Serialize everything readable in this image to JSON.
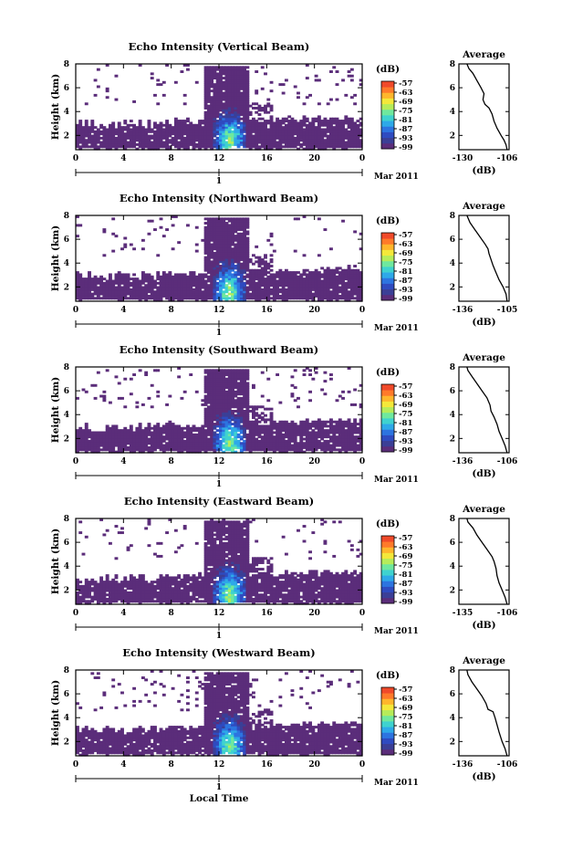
{
  "chart_data": {
    "type": "heatmap",
    "x_axis_label": "Local Time",
    "x_ticks": [
      "0",
      "4",
      "8",
      "12",
      "16",
      "20",
      "0"
    ],
    "x_range": [
      0,
      24
    ],
    "date_axis_tick": "1",
    "date_axis_label": "Mar 2011",
    "y_axis_label": "Height (km)",
    "y_ticks": [
      "2",
      "4",
      "6",
      "8"
    ],
    "y_range": [
      0.8,
      8.0
    ],
    "colorbar_unit": "(dB)",
    "colorbar_ticks": [
      "-57",
      "-63",
      "-69",
      "-75",
      "-81",
      "-87",
      "-93",
      "-99"
    ],
    "colorbar_colors": [
      "#5b2d7a",
      "#3b3f96",
      "#2f4bc0",
      "#2d74e0",
      "#2ea9e8",
      "#3fd2cf",
      "#6fe89e",
      "#b6ec5a",
      "#f4e83a",
      "#ffb62c",
      "#ff7a2a",
      "#f04a2a"
    ],
    "profile_title": "Average",
    "profile_xlabel": "(dB)",
    "profile_x_range": [
      -130,
      -105
    ],
    "profile_y_ticks": [
      "2",
      "4",
      "6",
      "8"
    ],
    "panels": [
      {
        "title": "Echo Intensity (Vertical Beam)",
        "profile_xticks": [
          "-130",
          "-106"
        ],
        "profile": [
          [
            -106,
            0.8
          ],
          [
            -106.5,
            1.2
          ],
          [
            -107.5,
            1.6
          ],
          [
            -109,
            2.0
          ],
          [
            -111,
            2.6
          ],
          [
            -112.5,
            3.2
          ],
          [
            -113.5,
            3.8
          ],
          [
            -115,
            4.3
          ],
          [
            -117,
            4.6
          ],
          [
            -118,
            5.0
          ],
          [
            -117.5,
            5.5
          ],
          [
            -119,
            6.0
          ],
          [
            -121,
            6.6
          ],
          [
            -123,
            7.2
          ],
          [
            -125,
            7.6
          ],
          [
            -126,
            8.0
          ]
        ]
      },
      {
        "title": "Echo Intensity (Northward Beam)",
        "profile_xticks": [
          "-136",
          "-105"
        ],
        "profile": [
          [
            -106,
            0.8
          ],
          [
            -106.5,
            1.4
          ],
          [
            -108,
            2.0
          ],
          [
            -110,
            2.6
          ],
          [
            -111.5,
            3.2
          ],
          [
            -113,
            3.8
          ],
          [
            -114,
            4.3
          ],
          [
            -115,
            4.8
          ],
          [
            -115.5,
            5.2
          ],
          [
            -117,
            5.6
          ],
          [
            -119.5,
            6.2
          ],
          [
            -122,
            6.8
          ],
          [
            -124.5,
            7.4
          ],
          [
            -126,
            8.0
          ]
        ]
      },
      {
        "title": "Echo Intensity (Southward Beam)",
        "profile_xticks": [
          "-136",
          "-106"
        ],
        "profile": [
          [
            -106,
            0.8
          ],
          [
            -107,
            1.4
          ],
          [
            -108.5,
            2.0
          ],
          [
            -110,
            2.6
          ],
          [
            -111,
            3.2
          ],
          [
            -112.5,
            3.8
          ],
          [
            -114,
            4.3
          ],
          [
            -114.5,
            4.8
          ],
          [
            -116,
            5.4
          ],
          [
            -118.5,
            6.0
          ],
          [
            -121,
            6.6
          ],
          [
            -123.5,
            7.2
          ],
          [
            -125.5,
            7.7
          ],
          [
            -126,
            8.0
          ]
        ]
      },
      {
        "title": "Echo Intensity (Eastward Beam)",
        "profile_xticks": [
          "-135",
          "-106"
        ],
        "profile": [
          [
            -106,
            0.8
          ],
          [
            -107,
            1.4
          ],
          [
            -108.5,
            2.0
          ],
          [
            -110,
            2.6
          ],
          [
            -111,
            3.2
          ],
          [
            -111.5,
            3.8
          ],
          [
            -112.5,
            4.4
          ],
          [
            -113.5,
            4.8
          ],
          [
            -116,
            5.4
          ],
          [
            -118.5,
            6.0
          ],
          [
            -121,
            6.6
          ],
          [
            -123,
            7.2
          ],
          [
            -125.5,
            7.7
          ],
          [
            -126,
            8.0
          ]
        ]
      },
      {
        "title": "Echo Intensity (Westward Beam)",
        "profile_xticks": [
          "-136",
          "-106"
        ],
        "profile": [
          [
            -106,
            0.8
          ],
          [
            -107,
            1.4
          ],
          [
            -108.5,
            2.0
          ],
          [
            -110,
            2.8
          ],
          [
            -111,
            3.4
          ],
          [
            -112,
            4.0
          ],
          [
            -113,
            4.5
          ],
          [
            -115.5,
            4.7
          ],
          [
            -116.5,
            5.2
          ],
          [
            -118.5,
            5.8
          ],
          [
            -121,
            6.4
          ],
          [
            -123.5,
            7.0
          ],
          [
            -125.5,
            7.6
          ],
          [
            -126,
            8.0
          ]
        ]
      }
    ]
  }
}
